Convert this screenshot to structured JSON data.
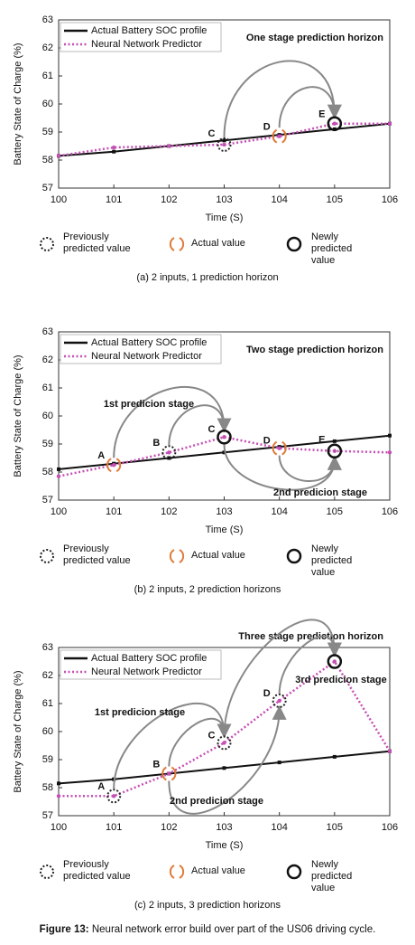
{
  "chart_data": [
    {
      "type": "line",
      "caption": "(a) 2 inputs, 1 prediction horizon",
      "xlabel": "Time (S)",
      "ylabel": "Battery State of Charge (%)",
      "annotation": "One stage prediction horizon",
      "annotation_color": "#c0282d",
      "stage_labels": [],
      "point_labels": [
        "C",
        "D",
        "E"
      ],
      "x": [
        100,
        101,
        102,
        103,
        104,
        105,
        106
      ],
      "xlim": [
        100,
        106
      ],
      "xticks": [
        100,
        101,
        102,
        103,
        104,
        105,
        106
      ],
      "ylim": [
        57,
        63
      ],
      "yticks": [
        57,
        58,
        59,
        60,
        61,
        62,
        63
      ],
      "legend_position": "upper left",
      "series": [
        {
          "name": "Actual Battery SOC profile",
          "color": "#111111",
          "values": [
            58.15,
            58.3,
            58.5,
            58.7,
            58.9,
            59.1,
            59.3
          ]
        },
        {
          "name": "Neural Network Predictor",
          "color": "#c64fb4",
          "values": [
            58.15,
            58.45,
            58.5,
            58.55,
            58.85,
            59.3,
            59.3
          ]
        }
      ],
      "legend_markers": [
        "Previously predicted value",
        "Actual value",
        "Newly predicted value"
      ]
    },
    {
      "type": "line",
      "caption": "(b) 2 inputs, 2 prediction horizons",
      "xlabel": "Time (S)",
      "ylabel": "Battery State of Charge (%)",
      "annotation": "Two stage prediction horizon",
      "annotation_color": "#c0282d",
      "stage_labels": [
        "1st predicion stage",
        "2nd predicion stage"
      ],
      "point_labels": [
        "A",
        "B",
        "C",
        "D",
        "E"
      ],
      "x": [
        100,
        101,
        102,
        103,
        104,
        105,
        106
      ],
      "xlim": [
        100,
        106
      ],
      "xticks": [
        100,
        101,
        102,
        103,
        104,
        105,
        106
      ],
      "ylim": [
        57,
        63
      ],
      "yticks": [
        57,
        58,
        59,
        60,
        61,
        62,
        63
      ],
      "legend_position": "upper left",
      "series": [
        {
          "name": "Actual Battery SOC profile",
          "color": "#111111",
          "values": [
            58.1,
            58.3,
            58.5,
            58.7,
            58.9,
            59.1,
            59.3
          ]
        },
        {
          "name": "Neural Network Predictor",
          "color": "#c64fb4",
          "values": [
            57.85,
            58.25,
            58.7,
            59.25,
            58.85,
            58.75,
            58.7
          ]
        }
      ],
      "legend_markers": [
        "Previously predicted value",
        "Actual value",
        "Newly predicted value"
      ]
    },
    {
      "type": "line",
      "caption": "(c) 2 inputs, 3 prediction horizons",
      "xlabel": "Time (S)",
      "ylabel": "Battery State of Charge (%)",
      "annotation": "Three stage prediction horizon",
      "annotation_color": "#c0282d",
      "stage_labels": [
        "1st predicion stage",
        "2nd predicion stage",
        "3rd predicion stage"
      ],
      "point_labels": [
        "A",
        "B",
        "C",
        "D"
      ],
      "x": [
        100,
        101,
        102,
        103,
        104,
        105,
        106
      ],
      "xlim": [
        100,
        106
      ],
      "xticks": [
        100,
        101,
        102,
        103,
        104,
        105,
        106
      ],
      "ylim": [
        57,
        63
      ],
      "yticks": [
        57,
        58,
        59,
        60,
        61,
        62,
        63
      ],
      "legend_position": "upper left",
      "series": [
        {
          "name": "Actual Battery SOC profile",
          "color": "#111111",
          "values": [
            58.15,
            58.3,
            58.5,
            58.7,
            58.9,
            59.1,
            59.3
          ]
        },
        {
          "name": "Neural Network Predictor",
          "color": "#c64fb4",
          "values": [
            57.7,
            57.7,
            58.5,
            59.6,
            61.1,
            62.5,
            59.3
          ]
        }
      ],
      "legend_markers": [
        "Previously predicted value",
        "Actual value",
        "Newly predicted value"
      ]
    }
  ],
  "figure_caption": {
    "label": "Figure 13:",
    "text": "Neural network error build over part of the US06 driving cycle."
  }
}
